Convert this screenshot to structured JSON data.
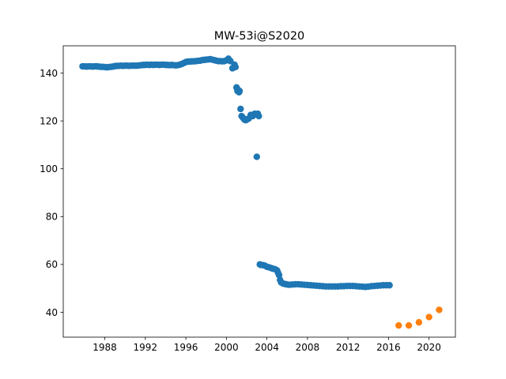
{
  "chart_data": {
    "type": "scatter",
    "title": "MW-53i@S2020",
    "xlabel": "",
    "ylabel": "",
    "xlim": [
      1983.9,
      2022.6
    ],
    "ylim": [
      29.6,
      151.4
    ],
    "x_ticks": [
      1988,
      1992,
      1996,
      2000,
      2004,
      2008,
      2012,
      2016,
      2020
    ],
    "y_ticks": [
      40,
      60,
      80,
      100,
      120,
      140
    ],
    "grid": false,
    "legend": "none",
    "series": [
      {
        "color": "#1f77b4",
        "x": [
          1985.8,
          1986.0,
          1986.2,
          1986.4,
          1986.6,
          1986.8,
          1987.0,
          1987.2,
          1987.4,
          1987.6,
          1987.8,
          1988.0,
          1988.2,
          1988.4,
          1988.6,
          1988.8,
          1989.0,
          1989.2,
          1989.4,
          1989.6,
          1989.8,
          1990.0,
          1990.2,
          1990.4,
          1990.6,
          1990.8,
          1991.0,
          1991.2,
          1991.4,
          1991.6,
          1991.8,
          1992.0,
          1992.2,
          1992.4,
          1992.6,
          1992.8,
          1993.0,
          1993.2,
          1993.4,
          1993.6,
          1993.8,
          1994.0,
          1994.2,
          1994.4,
          1994.6,
          1994.8,
          1995.0,
          1995.2,
          1995.4,
          1995.6,
          1995.8,
          1996.0,
          1996.2,
          1996.4,
          1996.6,
          1996.8,
          1997.0,
          1997.2,
          1997.4,
          1997.6,
          1997.8,
          1998.0,
          1998.2,
          1998.4,
          1998.6,
          1998.8,
          1999.0,
          1999.2,
          1999.4,
          1999.6,
          1999.8,
          2000.0,
          2000.2,
          2000.4,
          2000.6,
          2000.8,
          2000.9,
          2001.0,
          2001.05,
          2001.1,
          2001.15,
          2001.2,
          2001.25,
          2001.3,
          2001.4,
          2001.5,
          2001.6,
          2001.7,
          2001.8,
          2001.9,
          2002.0,
          2002.2,
          2002.4,
          2002.6,
          2002.8,
          2003.0,
          2003.1,
          2003.2,
          2003.3,
          2003.4,
          2003.6,
          2003.8,
          2004.0,
          2004.2,
          2004.4,
          2004.6,
          2004.8,
          2005.0,
          2005.1,
          2005.2,
          2005.3,
          2005.4,
          2005.6,
          2005.8,
          2006.0,
          2006.2,
          2006.5,
          2006.8,
          2007.1,
          2007.4,
          2007.7,
          2008.0,
          2008.3,
          2008.6,
          2008.9,
          2009.2,
          2009.5,
          2009.8,
          2010.1,
          2010.4,
          2010.7,
          2011.0,
          2011.3,
          2011.6,
          2011.9,
          2012.2,
          2012.5,
          2012.8,
          2013.1,
          2013.4,
          2013.7,
          2014.0,
          2014.3,
          2014.6,
          2014.9,
          2015.2,
          2015.5,
          2015.8,
          2016.1
        ],
        "y": [
          142.8,
          142.8,
          142.7,
          142.8,
          142.8,
          142.7,
          142.8,
          142.8,
          142.7,
          142.6,
          142.6,
          142.5,
          142.4,
          142.5,
          142.6,
          142.7,
          142.9,
          143.0,
          143.0,
          143.1,
          143.0,
          143.1,
          143.1,
          143.0,
          143.1,
          143.1,
          143.1,
          143.1,
          143.2,
          143.3,
          143.4,
          143.4,
          143.5,
          143.4,
          143.5,
          143.4,
          143.5,
          143.5,
          143.4,
          143.5,
          143.5,
          143.4,
          143.4,
          143.3,
          143.4,
          143.3,
          143.2,
          143.3,
          143.5,
          143.8,
          144.2,
          144.6,
          144.8,
          144.8,
          144.9,
          144.9,
          145.0,
          145.1,
          145.2,
          145.4,
          145.5,
          145.6,
          145.7,
          145.8,
          145.6,
          145.4,
          145.2,
          145.0,
          145.0,
          144.9,
          145.0,
          145.3,
          146.0,
          145.0,
          142.0,
          143.5,
          142.5,
          134.0,
          133.5,
          132.5,
          133.0,
          132.5,
          132.0,
          132.5,
          125.0,
          122.0,
          121.5,
          121.0,
          120.5,
          120.3,
          120.5,
          121.0,
          122.5,
          122.0,
          123.0,
          105.0,
          123.0,
          122.0,
          60.0,
          59.8,
          59.7,
          59.5,
          59.0,
          58.8,
          58.5,
          58.2,
          58.0,
          57.5,
          56.5,
          55.5,
          53.5,
          52.5,
          52.0,
          51.8,
          51.6,
          51.5,
          51.6,
          51.7,
          51.7,
          51.6,
          51.5,
          51.4,
          51.3,
          51.2,
          51.1,
          51.0,
          50.9,
          50.8,
          50.8,
          50.8,
          50.8,
          50.8,
          50.9,
          50.9,
          51.0,
          51.0,
          51.0,
          50.9,
          50.8,
          50.7,
          50.6,
          50.7,
          50.9,
          51.0,
          51.1,
          51.2,
          51.3,
          51.3,
          51.3
        ]
      },
      {
        "color": "#ff7f0e",
        "x": [
          2017.0,
          2018.0,
          2019.0,
          2020.0,
          2021.0
        ],
        "y": [
          34.5,
          34.5,
          35.8,
          38.0,
          41.0
        ]
      }
    ]
  }
}
